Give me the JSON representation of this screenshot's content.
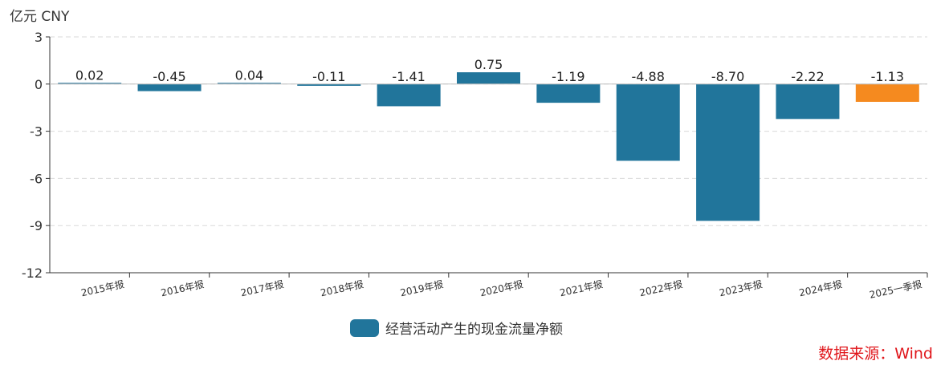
{
  "unit_label": "亿元  CNY",
  "source": "数据来源：Wind",
  "chart_data": {
    "type": "bar",
    "categories": [
      "2015年报",
      "2016年报",
      "2017年报",
      "2018年报",
      "2019年报",
      "2020年报",
      "2021年报",
      "2022年报",
      "2023年报",
      "2024年报",
      "2025一季报"
    ],
    "series": [
      {
        "name": "经营活动产生的现金流量净额",
        "values": [
          0.02,
          -0.45,
          0.04,
          -0.11,
          -1.41,
          0.75,
          -1.19,
          -4.88,
          -8.7,
          -2.22,
          -1.13
        ],
        "data_labels": [
          "0.02",
          "-0.45",
          "0.04",
          "-0.11",
          "-1.41",
          "0.75",
          "-1.19",
          "-4.88",
          "-8.70",
          "-2.22",
          "-1.13"
        ]
      }
    ],
    "ylim": [
      -12,
      3
    ],
    "yticks": [
      3,
      0,
      -3,
      -6,
      -9,
      -12
    ],
    "grid": true,
    "legend": "bottom-center",
    "colors": {
      "bar": "#21759b",
      "highlight": "#f58a1f",
      "axis": "#333333",
      "grid": "#d9d9d9",
      "source": "#e0161b"
    },
    "highlight_index": 10
  }
}
